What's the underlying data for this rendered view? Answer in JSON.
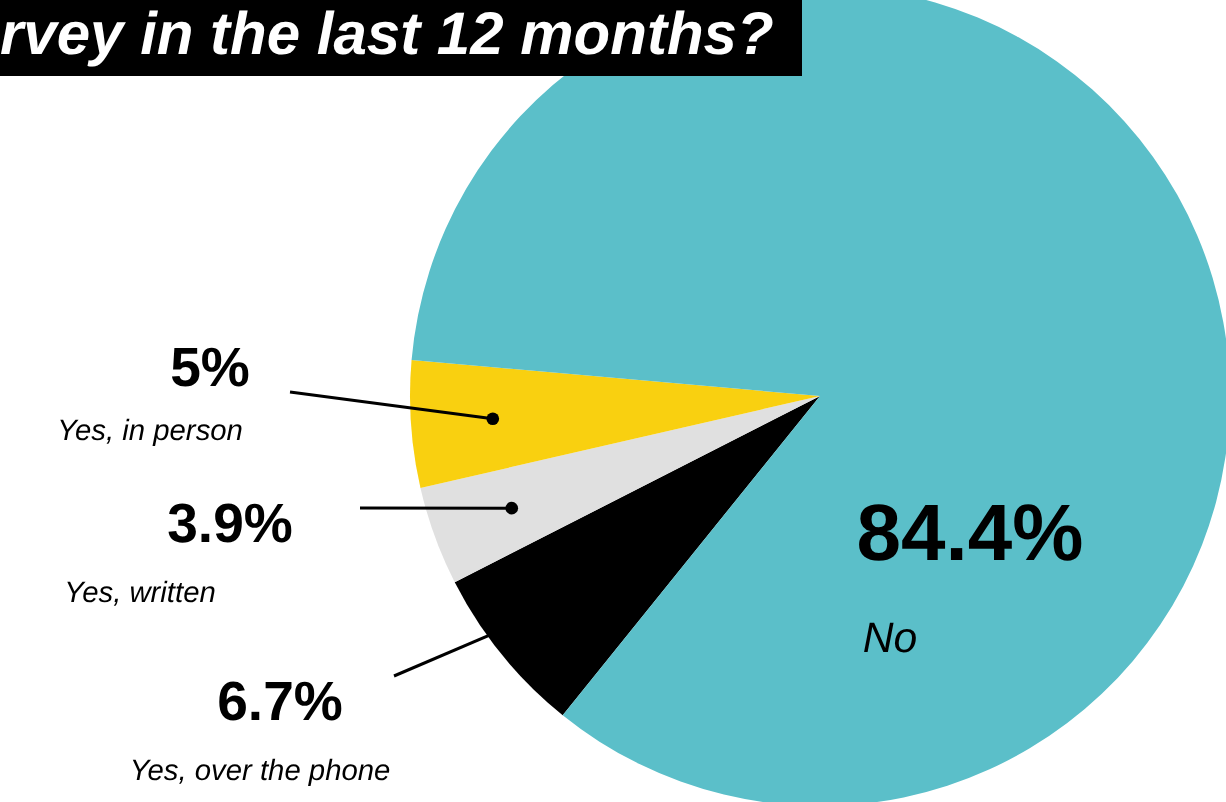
{
  "chart_data": {
    "type": "pie",
    "title": "rvey in the last 12 months?",
    "categories": [
      "Yes, over the phone",
      "Yes, written",
      "Yes, in person",
      "No"
    ],
    "values": [
      6.7,
      3.9,
      5,
      84.4
    ],
    "colors": [
      "#000000",
      "#e0e0e0",
      "#f9d010",
      "#5bbfc9"
    ],
    "value_labels": [
      "6.7%",
      "3.9%",
      "5%",
      "84.4%"
    ]
  }
}
